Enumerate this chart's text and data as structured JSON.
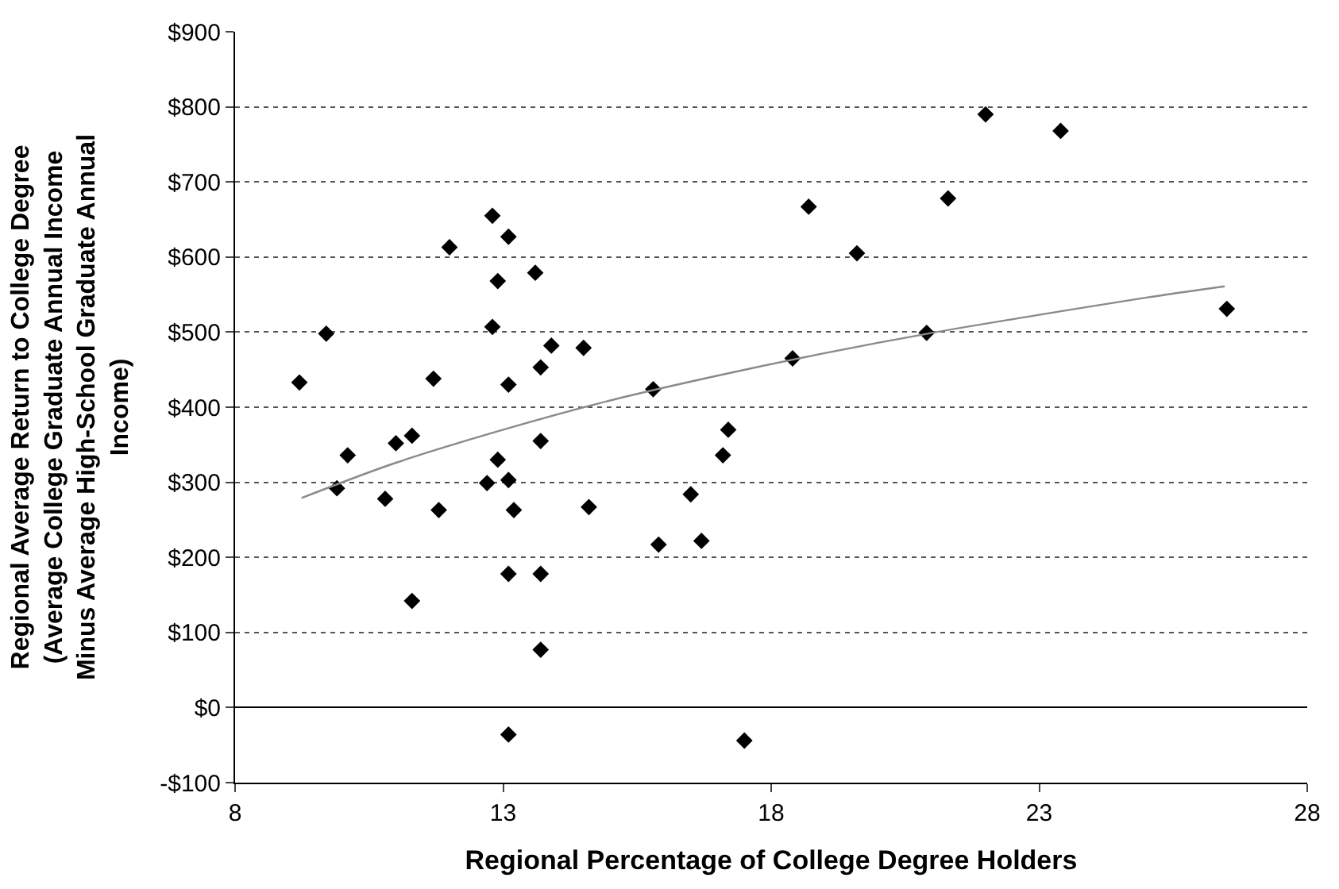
{
  "chart_data": {
    "type": "scatter",
    "xlabel": "Regional Percentage of College Degree Holders",
    "ylabel": "Regional Average Return to College Degree (Average College Graduate Annual Income Minus Average High-School Graduate Annual Income)",
    "xlim": [
      8,
      28
    ],
    "xticks": [
      8,
      13,
      18,
      23,
      28
    ],
    "ylim": [
      -100,
      900
    ],
    "yticks": [
      {
        "value": -100,
        "label": "-$100"
      },
      {
        "value": 0,
        "label": "$0"
      },
      {
        "value": 100,
        "label": "$100"
      },
      {
        "value": 200,
        "label": "$200"
      },
      {
        "value": 300,
        "label": "$300"
      },
      {
        "value": 400,
        "label": "$400"
      },
      {
        "value": 500,
        "label": "$500"
      },
      {
        "value": 600,
        "label": "$600"
      },
      {
        "value": 700,
        "label": "$700"
      },
      {
        "value": 800,
        "label": "$800"
      },
      {
        "value": 900,
        "label": "$900"
      }
    ],
    "grid": "y",
    "series": [
      {
        "color": "#000000",
        "marker": "diamond",
        "x": [
          9.2,
          9.7,
          10.1,
          9.9,
          10.8,
          11.0,
          11.3,
          11.3,
          11.7,
          11.8,
          12.0,
          12.8,
          13.1,
          12.9,
          12.8,
          13.1,
          12.9,
          12.7,
          13.1,
          13.2,
          13.1,
          13.7,
          13.6,
          13.9,
          13.7,
          13.7,
          13.7,
          14.5,
          14.6,
          15.8,
          15.9,
          16.5,
          16.7,
          17.1,
          17.2,
          13.1,
          17.5,
          18.4,
          18.7,
          19.6,
          20.9,
          21.3,
          22.0,
          23.4,
          26.5
        ],
        "values": [
          433,
          498,
          336,
          292,
          278,
          352,
          362,
          142,
          438,
          263,
          613,
          655,
          627,
          568,
          507,
          430,
          330,
          299,
          303,
          263,
          178,
          178,
          579,
          482,
          453,
          355,
          77,
          479,
          267,
          424,
          217,
          284,
          222,
          336,
          370,
          -36,
          -44,
          465,
          667,
          605,
          499,
          678,
          790,
          768,
          531
        ]
      },
      {
        "type": "line",
        "color": "#8a8a8a",
        "marker": "none",
        "line_style": "solid",
        "x": [
          9.24,
          11,
          13,
          15,
          17,
          19,
          21,
          23,
          25,
          26.46
        ],
        "values": [
          279,
          326,
          370,
          409,
          442,
          472,
          499,
          523,
          546,
          561
        ]
      }
    ]
  }
}
